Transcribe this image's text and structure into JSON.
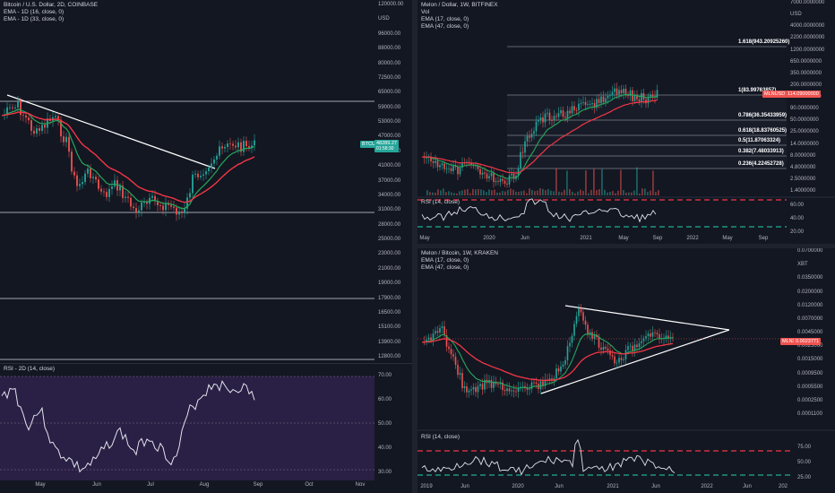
{
  "panes": {
    "btc": {
      "title": "Bitcoin / U.S. Dollar, 2D, COINBASE",
      "ema1": "EMA - 1D (16, close, 0)",
      "ema2": "EMA - 1D (33, close, 0)",
      "price_badge": "BTCUSD",
      "price_value": "48289.27",
      "price_sub": "01:58:30",
      "axis_ticks": [
        "120000.00",
        "USD",
        "96000.00",
        "88000.00",
        "80000.00",
        "72500.00",
        "65000.00",
        "59000.00",
        "53000.00",
        "47000.00",
        "45000.00",
        "41000.00",
        "37000.00",
        "34000.00",
        "31000.00",
        "28000.00",
        "25000.00",
        "23000.00",
        "21000.00",
        "19000.00",
        "17900.00",
        "16500.00",
        "15100.00",
        "13900.00",
        "12800.00"
      ],
      "time_ticks": [
        "May",
        "Jun",
        "Jul",
        "Aug",
        "Sep",
        "Oct",
        "Nov"
      ]
    },
    "btc_rsi": {
      "title": "RSI - 2D (14, close)",
      "axis_ticks": [
        "70.00",
        "60.00",
        "50.00",
        "40.00",
        "30.00"
      ]
    },
    "mln_usd": {
      "title": "Melon / Dollar, 1W, BITFINEX",
      "vol": "Vol",
      "ema1": "EMA (17, close, 0)",
      "ema2": "EMA (47, close, 0)",
      "price_badge": "MLNUSD",
      "price_value": "114.09000000",
      "axis_ticks": [
        "7000.0000000",
        "USD",
        "4000.0000000",
        "2200.0000000",
        "1200.0000000",
        "650.0000000",
        "350.0000000",
        "200.0000000",
        "110.0000000",
        "90.0000000",
        "50.0000000",
        "25.0000000",
        "14.0000000",
        "8.0000000",
        "4.8000000",
        "2.5000000",
        "1.4000000"
      ],
      "fib": [
        "1.618(943.20925260)",
        "1(83.99763857)",
        "0.786(36.35433959)",
        "0.618(18.83760525)",
        "0.5(11.87063324)",
        "0.382(7.48033913)",
        "0.236(4.22452728)"
      ],
      "time_ticks": [
        "May",
        "2020",
        "Jun",
        "2021",
        "May",
        "Sep",
        "2022",
        "May",
        "Sep"
      ],
      "rsi_title": "RSI (14, close)",
      "rsi_ticks": [
        "60.00",
        "40.00",
        "20.00"
      ]
    },
    "mln_btc": {
      "title": "Melon / Bitcoin, 1W, KRAKEN",
      "ema1": "EMA (17, close, 0)",
      "ema2": "EMA (47, close, 0)",
      "price_badge": "MLNXBT",
      "price_value": "0.0023771",
      "axis_ticks": [
        "0.0700000",
        "XBT",
        "0.0350000",
        "0.0200000",
        "0.0120000",
        "0.0070000",
        "0.0045000",
        "0.0025000",
        "0.0015000",
        "0.0009500",
        "0.0005500",
        "0.0002500",
        "0.0001100"
      ],
      "time_ticks": [
        "2019",
        "Jun",
        "2020",
        "Jun",
        "2021",
        "Jun",
        "2022",
        "Jun",
        "202"
      ],
      "rsi_title": "RSI (14, close)",
      "rsi_ticks": [
        "75.00",
        "50.00",
        "25.00"
      ]
    }
  },
  "colors": {
    "bg": "#131722",
    "up": "#26a69a",
    "down": "#ef5350",
    "ema_fast": "#26a65b",
    "ema_slow": "#f23645",
    "rsi_band": "#2a1f45"
  }
}
